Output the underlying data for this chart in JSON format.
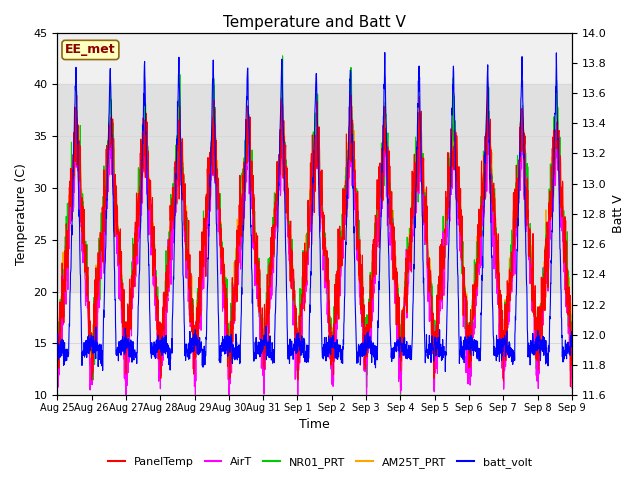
{
  "title": "Temperature and Batt V",
  "xlabel": "Time",
  "ylabel_left": "Temperature (C)",
  "ylabel_right": "Batt V",
  "ylim_left": [
    10,
    45
  ],
  "ylim_right": [
    11.6,
    14.0
  ],
  "annotation_text": "EE_met",
  "annotation_color": "#8B0000",
  "annotation_bg": "#FFFFC0",
  "annotation_border": "#8B6914",
  "grid_color": "#D8D8D8",
  "legend_items": [
    "PanelTemp",
    "AirT",
    "NR01_PRT",
    "AM25T_PRT",
    "batt_volt"
  ],
  "legend_colors": [
    "#FF0000",
    "#FF00FF",
    "#00CC00",
    "#FFA500",
    "#0000FF"
  ],
  "xtick_labels": [
    "Aug 25",
    "Aug 26",
    "Aug 27",
    "Aug 28",
    "Aug 29",
    "Aug 30",
    "Aug 31",
    "Sep 1",
    "Sep 2",
    "Sep 3",
    "Sep 4",
    "Sep 5",
    "Sep 6",
    "Sep 7",
    "Sep 8",
    "Sep 9"
  ],
  "n_days": 15,
  "points_per_day": 144,
  "fig_width": 6.4,
  "fig_height": 4.8,
  "dpi": 100
}
